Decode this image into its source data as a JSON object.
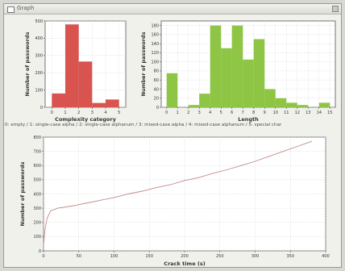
{
  "window": {
    "title": "Graph"
  },
  "caption": "0: empty / 1: single-case alpha / 2: single-case alphanum / 3: mixed-case alpha / 4: mixed-case alphanum / 5: special char",
  "colors": {
    "complexity_bars": "#d9534f",
    "length_bars": "#8ec544",
    "line": "#c48a8a",
    "grid": "#d5d5d5"
  },
  "chart_data": [
    {
      "type": "bar",
      "xlabel": "Complexity category",
      "ylabel": "Number of passwords",
      "categories": [
        "0",
        "1",
        "2",
        "3",
        "4"
      ],
      "values": [
        80,
        480,
        265,
        25,
        45
      ],
      "xticks": [
        "0",
        "1",
        "2",
        "3",
        "4",
        "5"
      ],
      "yticks": [
        "0",
        "100",
        "200",
        "300",
        "400",
        "500"
      ],
      "ylim": [
        0,
        500
      ],
      "grid": true
    },
    {
      "type": "bar",
      "xlabel": "Length",
      "ylabel": "Number of passwords",
      "categories": [
        "0",
        "2",
        "3",
        "4",
        "5",
        "6",
        "7",
        "8",
        "9",
        "10",
        "11",
        "12",
        "14"
      ],
      "values": [
        75,
        5,
        30,
        180,
        130,
        180,
        105,
        150,
        40,
        20,
        10,
        5,
        10
      ],
      "xticks": [
        "0",
        "1",
        "2",
        "3",
        "4",
        "5",
        "6",
        "7",
        "8",
        "9",
        "10",
        "11",
        "12",
        "13",
        "14",
        "15"
      ],
      "yticks": [
        "0",
        "20",
        "40",
        "60",
        "80",
        "100",
        "120",
        "140",
        "160",
        "180"
      ],
      "ylim": [
        0,
        190
      ],
      "grid": true
    },
    {
      "type": "line",
      "xlabel": "Crack time (s)",
      "ylabel": "Number of passwords",
      "x": [
        0,
        2,
        5,
        10,
        20,
        40,
        60,
        80,
        100,
        120,
        140,
        160,
        180,
        200,
        220,
        240,
        260,
        280,
        300,
        320,
        340,
        360,
        380
      ],
      "y": [
        40,
        150,
        230,
        280,
        300,
        315,
        335,
        355,
        375,
        400,
        420,
        445,
        465,
        495,
        515,
        545,
        570,
        600,
        630,
        665,
        700,
        735,
        770
      ],
      "xticks": [
        "0",
        "50",
        "100",
        "150",
        "200",
        "250",
        "300",
        "350",
        "400"
      ],
      "yticks": [
        "0",
        "100",
        "200",
        "300",
        "400",
        "500",
        "600",
        "700",
        "800"
      ],
      "xlim": [
        0,
        400
      ],
      "ylim": [
        0,
        800
      ],
      "grid": true
    }
  ]
}
